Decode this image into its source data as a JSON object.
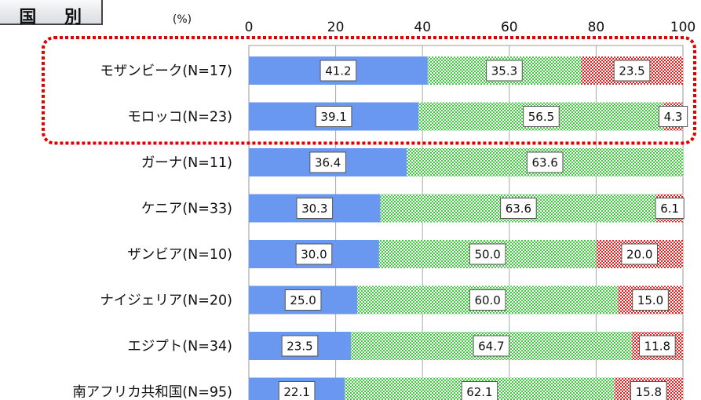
{
  "title": "国 別",
  "chart_data": {
    "type": "bar",
    "orientation": "horizontal",
    "stacked": true,
    "unit_label": "(%)",
    "xlim": [
      0,
      100
    ],
    "xticks": [
      0,
      20,
      40,
      60,
      80,
      100
    ],
    "grid": true,
    "categories": [
      "モザンビーク(N=17)",
      "モロッコ(N=23)",
      "ガーナ(N=11)",
      "ケニア(N=33)",
      "ザンビア(N=10)",
      "ナイジェリア(N=20)",
      "エジプト(N=34)",
      "南アフリカ共和国(N=95)"
    ],
    "series": [
      {
        "values": [
          41.2,
          39.1,
          36.4,
          30.3,
          30.0,
          25.0,
          23.5,
          22.1
        ],
        "color": "#6a97f0",
        "pattern": "solid"
      },
      {
        "values": [
          35.3,
          56.5,
          63.6,
          63.6,
          50.0,
          60.0,
          64.7,
          62.1
        ],
        "color": "#3ec93e",
        "pattern": "checker"
      },
      {
        "values": [
          23.5,
          4.3,
          0,
          6.1,
          20.0,
          15.0,
          11.8,
          15.8
        ],
        "color": "#e02020",
        "pattern": "checker"
      }
    ],
    "highlight": {
      "categories": [
        0,
        1
      ],
      "style": "red-dotted-rounded-box"
    }
  }
}
